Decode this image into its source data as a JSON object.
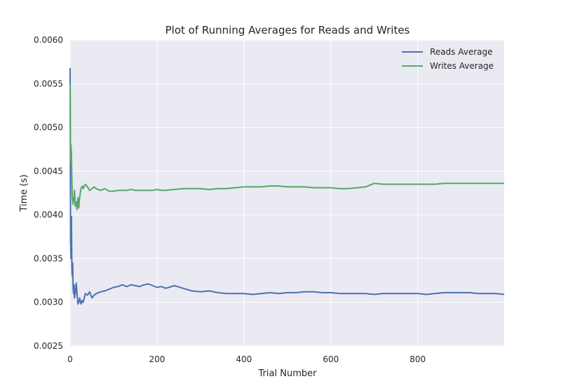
{
  "chart_data": {
    "type": "line",
    "title": "Plot of Running Averages for Reads and Writes",
    "xlabel": "Trial Number",
    "ylabel": "Time (s)",
    "xlim": [
      0,
      999
    ],
    "ylim": [
      0.0025,
      0.006
    ],
    "x_ticks": [
      0,
      200,
      400,
      600,
      800
    ],
    "x_tick_labels": [
      "0",
      "200",
      "400",
      "600",
      "800"
    ],
    "y_ticks": [
      0.0025,
      0.003,
      0.0035,
      0.004,
      0.0045,
      0.005,
      0.0055,
      0.006
    ],
    "y_tick_labels": [
      "0.0025",
      "0.0030",
      "0.0035",
      "0.0040",
      "0.0045",
      "0.0050",
      "0.0055",
      "0.0060"
    ],
    "grid": true,
    "legend_position": "top-right",
    "background": "#EAEAF2",
    "series": [
      {
        "name": "Reads Average",
        "color": "#4C72B0",
        "x": [
          0,
          1,
          2,
          3,
          4,
          5,
          6,
          7,
          8,
          9,
          10,
          12,
          14,
          16,
          18,
          20,
          22,
          25,
          28,
          30,
          35,
          40,
          45,
          50,
          55,
          60,
          70,
          80,
          90,
          100,
          110,
          120,
          130,
          140,
          150,
          160,
          170,
          180,
          190,
          200,
          210,
          220,
          240,
          260,
          280,
          300,
          320,
          340,
          360,
          380,
          400,
          420,
          440,
          460,
          480,
          500,
          520,
          540,
          560,
          580,
          600,
          620,
          640,
          660,
          680,
          700,
          720,
          740,
          760,
          780,
          800,
          820,
          840,
          860,
          880,
          900,
          920,
          940,
          960,
          980,
          999
        ],
        "values": [
          0.00568,
          0.0037,
          0.0035,
          0.00398,
          0.0034,
          0.0033,
          0.00345,
          0.00315,
          0.0031,
          0.0032,
          0.00305,
          0.0031,
          0.00322,
          0.0031,
          0.00298,
          0.003,
          0.00305,
          0.00298,
          0.00302,
          0.003,
          0.0031,
          0.00308,
          0.00312,
          0.00305,
          0.00308,
          0.0031,
          0.00312,
          0.00313,
          0.00315,
          0.00317,
          0.00318,
          0.0032,
          0.00318,
          0.0032,
          0.00319,
          0.00318,
          0.0032,
          0.00321,
          0.00319,
          0.00317,
          0.00318,
          0.00316,
          0.00319,
          0.00316,
          0.00313,
          0.00312,
          0.00313,
          0.00311,
          0.0031,
          0.0031,
          0.0031,
          0.00309,
          0.0031,
          0.00311,
          0.0031,
          0.00311,
          0.00311,
          0.00312,
          0.00312,
          0.00311,
          0.00311,
          0.0031,
          0.0031,
          0.0031,
          0.0031,
          0.00309,
          0.0031,
          0.0031,
          0.0031,
          0.0031,
          0.0031,
          0.00309,
          0.0031,
          0.00311,
          0.00311,
          0.00311,
          0.00311,
          0.0031,
          0.0031,
          0.0031,
          0.00309
        ]
      },
      {
        "name": "Writes Average",
        "color": "#55A868",
        "x": [
          0,
          1,
          2,
          3,
          4,
          5,
          6,
          7,
          8,
          9,
          10,
          12,
          14,
          16,
          18,
          20,
          22,
          25,
          28,
          30,
          35,
          40,
          45,
          50,
          55,
          60,
          70,
          80,
          90,
          100,
          110,
          120,
          130,
          140,
          150,
          160,
          170,
          180,
          190,
          200,
          210,
          220,
          240,
          260,
          280,
          300,
          320,
          340,
          360,
          380,
          400,
          420,
          440,
          460,
          480,
          500,
          520,
          540,
          560,
          580,
          600,
          620,
          640,
          660,
          680,
          700,
          720,
          740,
          760,
          780,
          800,
          820,
          840,
          860,
          880,
          900,
          920,
          940,
          960,
          980,
          999
        ],
        "values": [
          0.0055,
          0.0046,
          0.0048,
          0.0047,
          0.0044,
          0.0042,
          0.00415,
          0.00412,
          0.00418,
          0.0042,
          0.00428,
          0.0041,
          0.00415,
          0.00406,
          0.0042,
          0.00408,
          0.0042,
          0.0043,
          0.00433,
          0.0043,
          0.00435,
          0.00432,
          0.00428,
          0.0043,
          0.00432,
          0.0043,
          0.00428,
          0.0043,
          0.00427,
          0.00427,
          0.00428,
          0.00428,
          0.00428,
          0.00429,
          0.00428,
          0.00428,
          0.00428,
          0.00428,
          0.00428,
          0.00429,
          0.00428,
          0.00428,
          0.00429,
          0.0043,
          0.0043,
          0.0043,
          0.00429,
          0.0043,
          0.0043,
          0.00431,
          0.00432,
          0.00432,
          0.00432,
          0.00433,
          0.00433,
          0.00432,
          0.00432,
          0.00432,
          0.00431,
          0.00431,
          0.00431,
          0.0043,
          0.0043,
          0.00431,
          0.00432,
          0.00436,
          0.00435,
          0.00435,
          0.00435,
          0.00435,
          0.00435,
          0.00435,
          0.00435,
          0.00436,
          0.00436,
          0.00436,
          0.00436,
          0.00436,
          0.00436,
          0.00436,
          0.00436
        ]
      }
    ]
  }
}
